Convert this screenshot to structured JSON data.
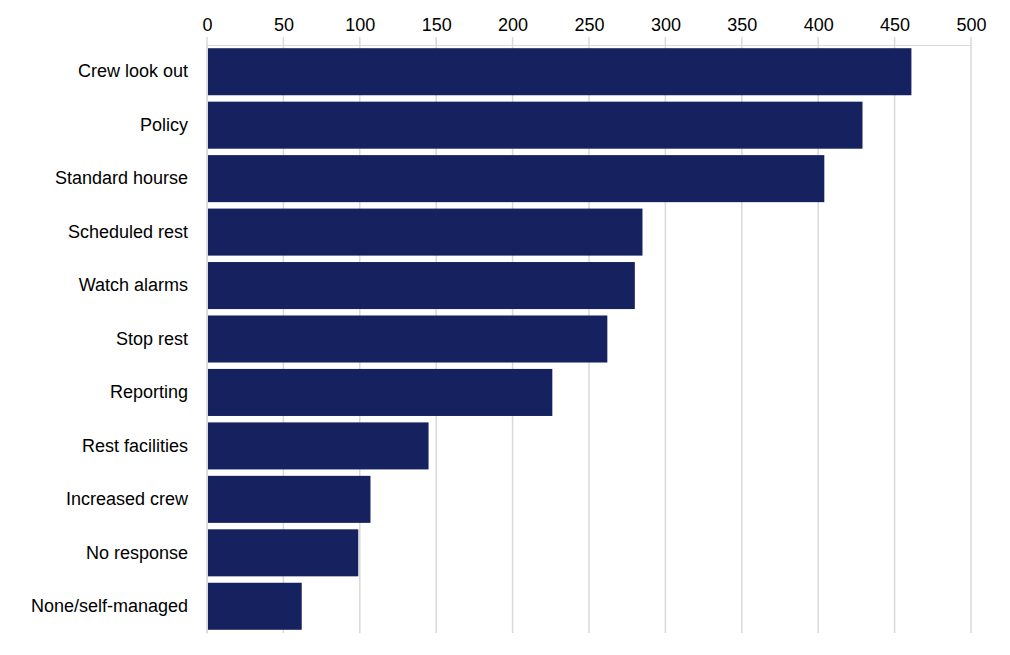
{
  "chart_data": {
    "type": "bar",
    "orientation": "horizontal",
    "categories": [
      "Crew look out",
      "Policy",
      "Standard hourse",
      "Scheduled rest",
      "Watch alarms",
      "Stop rest",
      "Reporting",
      "Rest facilities",
      "Increased crew",
      "No response",
      "None/self-managed"
    ],
    "values": [
      461,
      429,
      404,
      285,
      280,
      262,
      226,
      145,
      107,
      99,
      62
    ],
    "color": "#162260",
    "xlim": [
      0,
      500
    ],
    "xticks": [
      0,
      50,
      100,
      150,
      200,
      250,
      300,
      350,
      400,
      450,
      500
    ],
    "grid": true
  }
}
